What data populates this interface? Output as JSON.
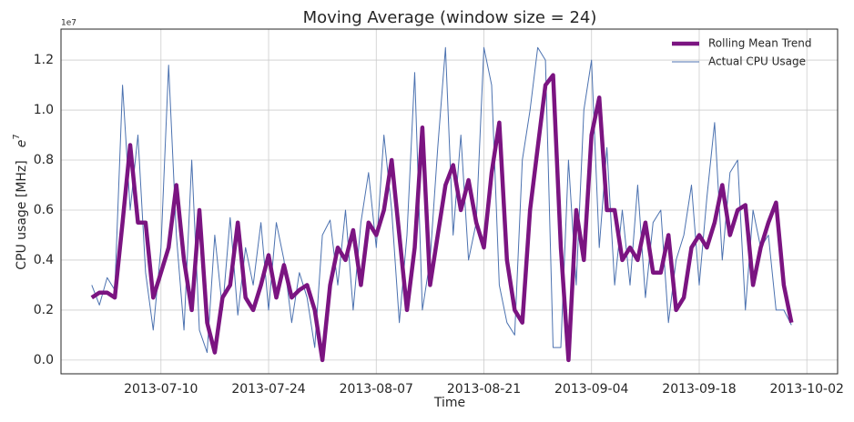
{
  "chart_data": {
    "type": "line",
    "title": "Moving Average (window size = 24)",
    "xlabel": "Time",
    "ylabel": "CPU usage [MHz]",
    "yunit": {
      "base": "e",
      "exp": "7"
    },
    "offset_text": "1e7",
    "x": [
      "2013-07-01",
      "2013-07-02",
      "2013-07-03",
      "2013-07-04",
      "2013-07-05",
      "2013-07-06",
      "2013-07-07",
      "2013-07-08",
      "2013-07-09",
      "2013-07-10",
      "2013-07-11",
      "2013-07-12",
      "2013-07-13",
      "2013-07-14",
      "2013-07-15",
      "2013-07-16",
      "2013-07-17",
      "2013-07-18",
      "2013-07-19",
      "2013-07-20",
      "2013-07-21",
      "2013-07-22",
      "2013-07-23",
      "2013-07-24",
      "2013-07-25",
      "2013-07-26",
      "2013-07-27",
      "2013-07-28",
      "2013-07-29",
      "2013-07-30",
      "2013-07-31",
      "2013-08-01",
      "2013-08-02",
      "2013-08-03",
      "2013-08-04",
      "2013-08-05",
      "2013-08-06",
      "2013-08-07",
      "2013-08-08",
      "2013-08-09",
      "2013-08-10",
      "2013-08-11",
      "2013-08-12",
      "2013-08-13",
      "2013-08-14",
      "2013-08-15",
      "2013-08-16",
      "2013-08-17",
      "2013-08-18",
      "2013-08-19",
      "2013-08-20",
      "2013-08-21",
      "2013-08-22",
      "2013-08-23",
      "2013-08-24",
      "2013-08-25",
      "2013-08-26",
      "2013-08-27",
      "2013-08-28",
      "2013-08-29",
      "2013-08-30",
      "2013-08-31",
      "2013-09-01",
      "2013-09-02",
      "2013-09-03",
      "2013-09-04",
      "2013-09-05",
      "2013-09-06",
      "2013-09-07",
      "2013-09-08",
      "2013-09-09",
      "2013-09-10",
      "2013-09-11",
      "2013-09-12",
      "2013-09-13",
      "2013-09-14",
      "2013-09-15",
      "2013-09-16",
      "2013-09-17",
      "2013-09-18",
      "2013-09-19",
      "2013-09-20",
      "2013-09-21",
      "2013-09-22",
      "2013-09-23",
      "2013-09-24",
      "2013-09-25",
      "2013-09-26",
      "2013-09-27",
      "2013-09-28",
      "2013-09-29",
      "2013-09-30"
    ],
    "series": [
      {
        "name": "Rolling Mean Trend",
        "color": "#7b1481",
        "width": 4.5,
        "values": [
          0.25,
          0.27,
          0.27,
          0.25,
          0.55,
          0.86,
          0.55,
          0.55,
          0.25,
          0.35,
          0.45,
          0.7,
          0.4,
          0.2,
          0.6,
          0.15,
          0.03,
          0.25,
          0.3,
          0.55,
          0.25,
          0.2,
          0.3,
          0.42,
          0.25,
          0.38,
          0.25,
          0.28,
          0.3,
          0.2,
          0,
          0.3,
          0.45,
          0.4,
          0.52,
          0.3,
          0.55,
          0.5,
          0.6,
          0.8,
          0.5,
          0.2,
          0.45,
          0.93,
          0.3,
          0.5,
          0.7,
          0.78,
          0.6,
          0.72,
          0.55,
          0.45,
          0.75,
          0.95,
          0.4,
          0.2,
          0.15,
          0.6,
          0.85,
          1.1,
          1.14,
          0.45,
          0,
          0.6,
          0.4,
          0.9,
          1.05,
          0.6,
          0.6,
          0.4,
          0.45,
          0.4,
          0.55,
          0.35,
          0.35,
          0.5,
          0.2,
          0.25,
          0.45,
          0.5,
          0.45,
          0.55,
          0.7,
          0.5,
          0.6,
          0.62,
          0.3,
          0.45,
          0.55,
          0.63,
          0.3,
          0.15
        ]
      },
      {
        "name": "Actual CPU Usage",
        "color": "#4c72b0",
        "width": 1,
        "values": [
          0.3,
          0.22,
          0.33,
          0.28,
          1.1,
          0.6,
          0.9,
          0.35,
          0.12,
          0.45,
          1.18,
          0.5,
          0.12,
          0.8,
          0.12,
          0.03,
          0.5,
          0.2,
          0.57,
          0.18,
          0.45,
          0.3,
          0.55,
          0.2,
          0.55,
          0.4,
          0.15,
          0.35,
          0.25,
          0.05,
          0.5,
          0.56,
          0.3,
          0.6,
          0.2,
          0.55,
          0.75,
          0.45,
          0.9,
          0.6,
          0.15,
          0.5,
          1.15,
          0.2,
          0.4,
          0.85,
          1.25,
          0.5,
          0.9,
          0.4,
          0.55,
          1.25,
          1.1,
          0.3,
          0.15,
          0.1,
          0.8,
          1.0,
          1.25,
          1.2,
          0.05,
          0.05,
          0.8,
          0.3,
          1.0,
          1.2,
          0.45,
          0.85,
          0.3,
          0.6,
          0.3,
          0.7,
          0.25,
          0.55,
          0.6,
          0.15,
          0.4,
          0.5,
          0.7,
          0.3,
          0.65,
          0.95,
          0.4,
          0.75,
          0.8,
          0.2,
          0.6,
          0.45,
          0.5,
          0.2,
          0.2,
          0.14
        ]
      }
    ],
    "xlim": [
      "2013-06-27",
      "2013-10-06"
    ],
    "xticks": [
      "2013-07-10",
      "2013-07-24",
      "2013-08-07",
      "2013-08-21",
      "2013-09-04",
      "2013-09-18",
      "2013-10-02"
    ],
    "ylim": [
      -0.055,
      1.324
    ],
    "yticks": [
      {
        "value": 0,
        "label": "0.0"
      },
      0.2,
      0.4,
      0.6,
      0.8,
      {
        "value": 1,
        "label": "1.0"
      },
      1.2
    ],
    "grid": true,
    "legend": "upper right"
  }
}
